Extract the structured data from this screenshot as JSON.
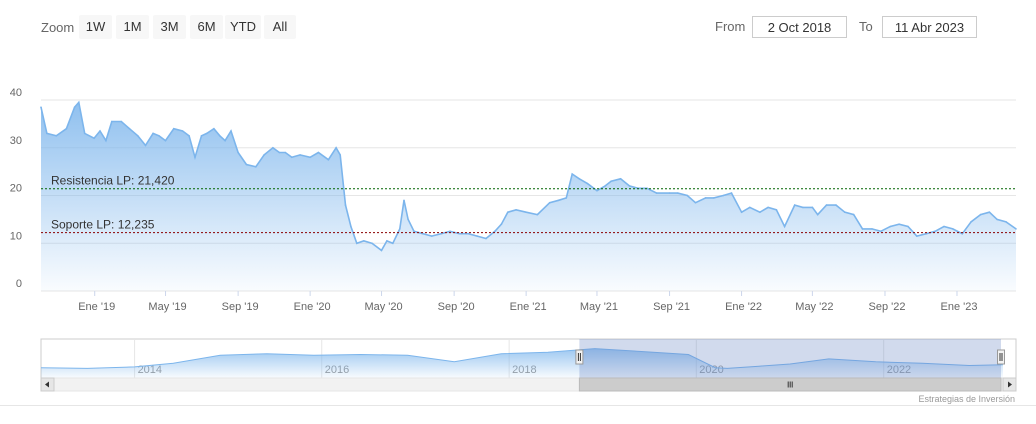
{
  "toolbar": {
    "zoom_label": "Zoom",
    "buttons": [
      "1W",
      "1M",
      "3M",
      "6M",
      "YTD",
      "All"
    ],
    "from_label": "From",
    "from_value": "2 Oct 2018",
    "to_label": "To",
    "to_value": "11 Abr 2023"
  },
  "credits": "Estrategias de Inversión",
  "colors": {
    "line": "#7cb5ec",
    "area_top": "#7cb5ec",
    "resistance_line": "#006400",
    "support_line": "#8b0000",
    "navigator_mask": "#6685c2",
    "grid": "#e6e6e6"
  },
  "chart_data": {
    "type": "area",
    "title": "",
    "xlabel": "",
    "ylabel": "",
    "ylim": [
      0,
      40
    ],
    "yticks": [
      0,
      10,
      20,
      30,
      40
    ],
    "xlim": [
      "2018-10-02",
      "2023-04-11"
    ],
    "xticks": [
      {
        "date": "2019-01-01",
        "label": "Ene '19"
      },
      {
        "date": "2019-05-01",
        "label": "May '19"
      },
      {
        "date": "2019-09-01",
        "label": "Sep '19"
      },
      {
        "date": "2020-01-01",
        "label": "Ene '20"
      },
      {
        "date": "2020-05-01",
        "label": "May '20"
      },
      {
        "date": "2020-09-01",
        "label": "Sep '20"
      },
      {
        "date": "2021-01-01",
        "label": "Ene '21"
      },
      {
        "date": "2021-05-01",
        "label": "May '21"
      },
      {
        "date": "2021-09-01",
        "label": "Sep '21"
      },
      {
        "date": "2022-01-01",
        "label": "Ene '22"
      },
      {
        "date": "2022-05-01",
        "label": "May '22"
      },
      {
        "date": "2022-09-01",
        "label": "Sep '22"
      },
      {
        "date": "2023-01-01",
        "label": "Ene '23"
      }
    ],
    "grid": true,
    "series": [
      {
        "x": [
          "2018-10-02",
          "2018-10-12",
          "2018-10-28",
          "2018-11-14",
          "2018-11-28",
          "2018-12-05",
          "2018-12-15",
          "2018-12-31",
          "2019-01-10",
          "2019-01-20",
          "2019-01-30",
          "2019-02-15",
          "2019-03-01",
          "2019-03-15",
          "2019-03-28",
          "2019-04-10",
          "2019-04-20",
          "2019-05-01",
          "2019-05-15",
          "2019-05-30",
          "2019-06-10",
          "2019-06-20",
          "2019-07-01",
          "2019-07-10",
          "2019-07-22",
          "2019-08-01",
          "2019-08-10",
          "2019-08-20",
          "2019-09-01",
          "2019-09-15",
          "2019-10-01",
          "2019-10-15",
          "2019-10-30",
          "2019-11-10",
          "2019-11-20",
          "2019-12-01",
          "2019-12-15",
          "2020-01-01",
          "2020-01-15",
          "2020-02-01",
          "2020-02-14",
          "2020-02-21",
          "2020-03-01",
          "2020-03-10",
          "2020-03-20",
          "2020-04-01",
          "2020-04-15",
          "2020-05-01",
          "2020-05-10",
          "2020-05-20",
          "2020-06-01",
          "2020-06-08",
          "2020-06-15",
          "2020-06-25",
          "2020-07-10",
          "2020-07-25",
          "2020-08-10",
          "2020-08-25",
          "2020-09-10",
          "2020-09-25",
          "2020-10-10",
          "2020-10-25",
          "2020-11-09",
          "2020-11-20",
          "2020-12-01",
          "2020-12-15",
          "2021-01-01",
          "2021-01-20",
          "2021-02-10",
          "2021-02-25",
          "2021-03-10",
          "2021-03-20",
          "2021-04-01",
          "2021-04-15",
          "2021-05-01",
          "2021-05-15",
          "2021-05-25",
          "2021-06-10",
          "2021-06-25",
          "2021-07-10",
          "2021-07-25",
          "2021-08-10",
          "2021-09-01",
          "2021-09-15",
          "2021-10-01",
          "2021-10-15",
          "2021-11-01",
          "2021-11-15",
          "2021-12-01",
          "2021-12-15",
          "2022-01-01",
          "2022-01-15",
          "2022-02-01",
          "2022-02-15",
          "2022-03-01",
          "2022-03-15",
          "2022-04-01",
          "2022-04-15",
          "2022-05-01",
          "2022-05-10",
          "2022-05-25",
          "2022-06-10",
          "2022-06-25",
          "2022-07-10",
          "2022-07-25",
          "2022-08-10",
          "2022-08-25",
          "2022-09-10",
          "2022-09-25",
          "2022-10-10",
          "2022-10-25",
          "2022-11-10",
          "2022-11-25",
          "2022-12-10",
          "2022-12-25",
          "2023-01-10",
          "2023-01-25",
          "2023-02-10",
          "2023-02-25",
          "2023-03-10",
          "2023-03-25",
          "2023-04-11"
        ],
        "values": [
          38.5,
          33.0,
          32.5,
          34.0,
          38.5,
          39.5,
          33.0,
          32.0,
          33.5,
          31.5,
          35.5,
          35.5,
          34.0,
          32.5,
          30.5,
          33.0,
          32.5,
          31.5,
          34.0,
          33.5,
          32.5,
          28.0,
          32.5,
          33.0,
          34.0,
          32.5,
          31.5,
          33.5,
          29.0,
          26.5,
          26.0,
          28.5,
          30.0,
          29.0,
          29.0,
          28.0,
          28.5,
          28.0,
          29.0,
          27.5,
          30.0,
          28.5,
          18.0,
          13.5,
          10.0,
          10.5,
          10.0,
          8.5,
          10.5,
          10.0,
          13.0,
          19.0,
          15.0,
          12.5,
          12.0,
          11.5,
          12.0,
          12.5,
          12.0,
          12.0,
          11.5,
          11.0,
          12.5,
          14.0,
          16.5,
          17.0,
          16.5,
          16.0,
          18.5,
          19.0,
          19.5,
          24.5,
          23.5,
          22.5,
          21.0,
          22.0,
          23.0,
          23.5,
          22.0,
          21.5,
          21.5,
          20.5,
          20.5,
          20.5,
          20.0,
          18.5,
          19.5,
          19.5,
          20.0,
          20.5,
          16.5,
          17.5,
          16.5,
          17.5,
          17.0,
          13.5,
          18.0,
          17.5,
          17.5,
          16.0,
          18.0,
          18.0,
          16.5,
          16.0,
          13.0,
          13.0,
          12.5,
          13.5,
          14.0,
          13.5,
          11.5,
          12.0,
          12.5,
          13.5,
          13.0,
          12.0,
          14.5,
          16.0,
          16.5,
          15.0,
          14.5,
          13.0
        ]
      }
    ],
    "plot_lines": [
      {
        "label": "Resistencia LP: 21,420",
        "value": 21.42
      },
      {
        "label": "Soporte LP: 12,235",
        "value": 12.235
      }
    ],
    "navigator": {
      "xticks": [
        "2014",
        "2016",
        "2018",
        "2020",
        "2022"
      ],
      "xlim": [
        "2013-01-01",
        "2023-06-01"
      ],
      "series": {
        "x": [
          "2013-01-01",
          "2013-07-01",
          "2014-01-01",
          "2014-06-01",
          "2014-12-01",
          "2015-06-01",
          "2015-12-01",
          "2016-06-01",
          "2016-12-01",
          "2017-06-01",
          "2017-12-01",
          "2018-06-01",
          "2018-12-01",
          "2019-06-01",
          "2019-12-01",
          "2020-03-15",
          "2020-05-01",
          "2020-09-01",
          "2021-01-01",
          "2021-06-01",
          "2021-12-01",
          "2022-06-01",
          "2022-12-01",
          "2023-04-11"
        ],
        "values": [
          10,
          9,
          11,
          16,
          27,
          29,
          27,
          28,
          27,
          18,
          29,
          31,
          36,
          32,
          28,
          10,
          9,
          12,
          15,
          22,
          18,
          16,
          13,
          14
        ]
      }
    }
  }
}
